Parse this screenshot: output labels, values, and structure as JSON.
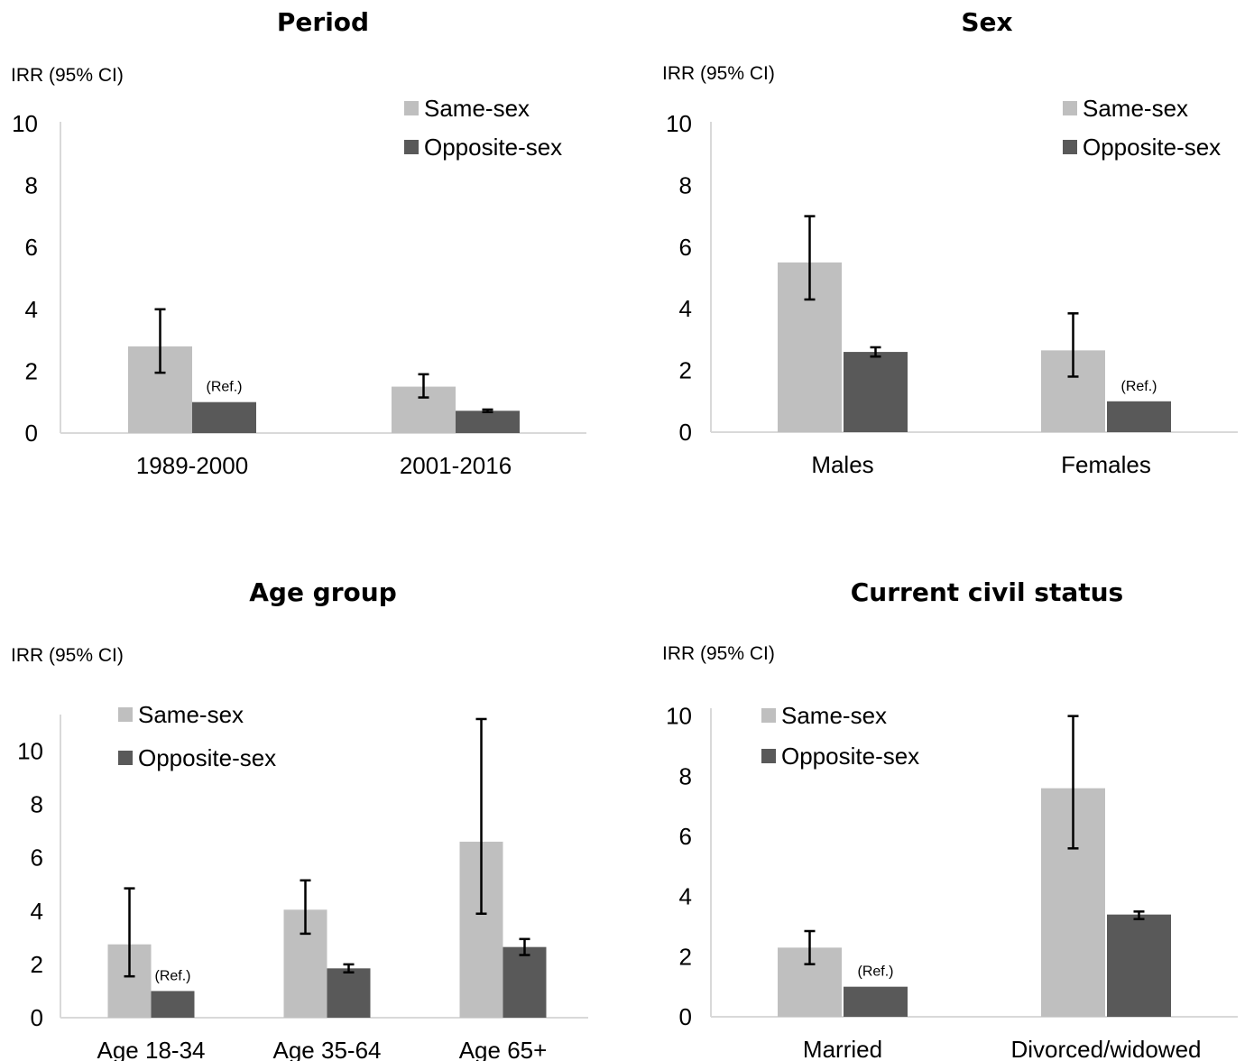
{
  "chart_data": [
    {
      "type": "bar",
      "title": "Period",
      "ylabel": "IRR (95% CI)",
      "categories": [
        "1989-2000",
        "2001-2016"
      ],
      "ylim": [
        0,
        10
      ],
      "yticks": [
        0,
        2,
        4,
        6,
        8,
        10
      ],
      "series": [
        {
          "name": "Same-sex",
          "color": "#bfbfbf",
          "values": [
            2.8,
            1.5
          ],
          "ci_low": [
            1.95,
            1.15
          ],
          "ci_high": [
            4.0,
            1.9
          ]
        },
        {
          "name": "Opposite-sex",
          "color": "#595959",
          "values": [
            1.0,
            0.72
          ],
          "ci_low": [
            null,
            0.68
          ],
          "ci_high": [
            null,
            0.76
          ]
        }
      ],
      "annotations": [
        {
          "series": 1,
          "category": 0,
          "text": "(Ref.)"
        }
      ],
      "legend": "top-right"
    },
    {
      "type": "bar",
      "title": "Sex",
      "ylabel": "IRR (95% CI)",
      "categories": [
        "Males",
        "Females"
      ],
      "ylim": [
        0,
        10
      ],
      "yticks": [
        0,
        2,
        4,
        6,
        8,
        10
      ],
      "series": [
        {
          "name": "Same-sex",
          "color": "#bfbfbf",
          "values": [
            5.5,
            2.65
          ],
          "ci_low": [
            4.3,
            1.8
          ],
          "ci_high": [
            7.0,
            3.85
          ]
        },
        {
          "name": "Opposite-sex",
          "color": "#595959",
          "values": [
            2.6,
            1.0
          ],
          "ci_low": [
            2.45,
            null
          ],
          "ci_high": [
            2.75,
            null
          ]
        }
      ],
      "annotations": [
        {
          "series": 1,
          "category": 1,
          "text": "(Ref.)"
        }
      ],
      "legend": "top-right"
    },
    {
      "type": "bar",
      "title": "Age group",
      "ylabel": "IRR (95% CI)",
      "categories": [
        "Age 18-34",
        "Age 35-64",
        "Age 65+"
      ],
      "ylim": [
        0,
        11.3
      ],
      "yticks": [
        0,
        2,
        4,
        6,
        8,
        10
      ],
      "series": [
        {
          "name": "Same-sex",
          "color": "#bfbfbf",
          "values": [
            2.75,
            4.05,
            6.6
          ],
          "ci_low": [
            1.55,
            3.15,
            3.9
          ],
          "ci_high": [
            4.85,
            5.15,
            11.2
          ]
        },
        {
          "name": "Opposite-sex",
          "color": "#595959",
          "values": [
            1.0,
            1.85,
            2.65
          ],
          "ci_low": [
            null,
            1.7,
            2.35
          ],
          "ci_high": [
            null,
            2.0,
            2.95
          ]
        }
      ],
      "annotations": [
        {
          "series": 1,
          "category": 0,
          "text": "(Ref.)"
        }
      ],
      "legend": "top-left"
    },
    {
      "type": "bar",
      "title": "Current civil status",
      "ylabel": "IRR (95% CI)",
      "categories": [
        "Married",
        "Divorced/widowed"
      ],
      "ylim": [
        0,
        10.2
      ],
      "yticks": [
        0,
        2,
        4,
        6,
        8,
        10
      ],
      "series": [
        {
          "name": "Same-sex",
          "color": "#bfbfbf",
          "values": [
            2.3,
            7.6
          ],
          "ci_low": [
            1.75,
            5.6
          ],
          "ci_high": [
            2.85,
            10.0
          ]
        },
        {
          "name": "Opposite-sex",
          "color": "#595959",
          "values": [
            1.0,
            3.4
          ],
          "ci_low": [
            null,
            3.25
          ],
          "ci_high": [
            null,
            3.5
          ]
        }
      ],
      "annotations": [
        {
          "series": 1,
          "category": 0,
          "text": "(Ref.)"
        }
      ],
      "legend": "top-left"
    }
  ]
}
